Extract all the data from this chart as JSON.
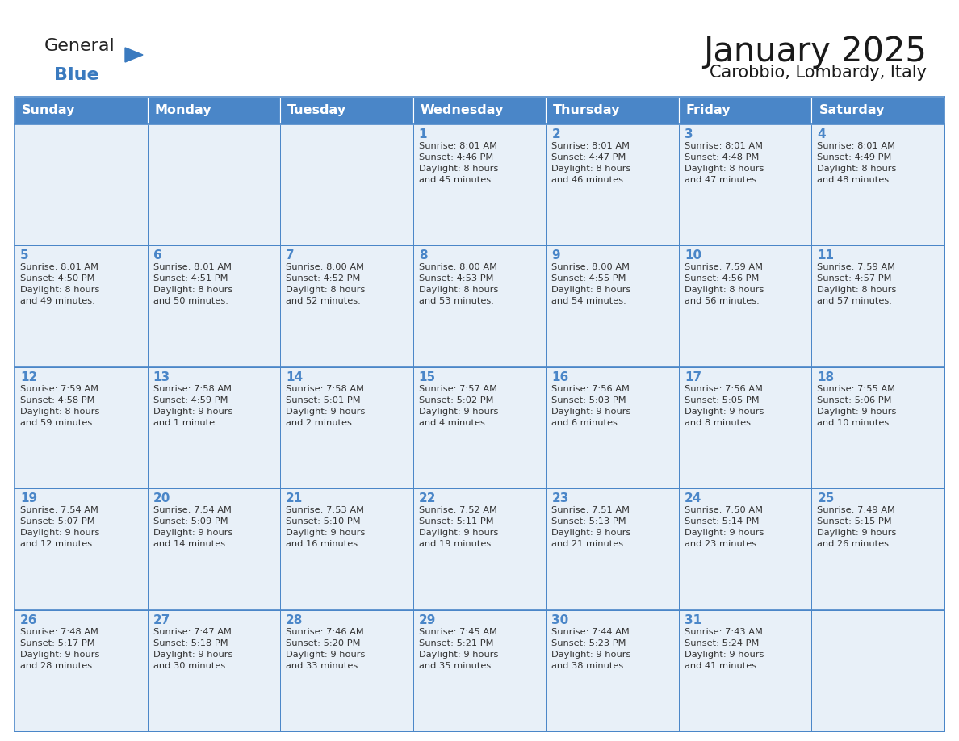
{
  "title": "January 2025",
  "subtitle": "Carobbio, Lombardy, Italy",
  "header_bg": "#4a86c8",
  "header_text_color": "#ffffff",
  "cell_bg": "#e8f0f8",
  "cell_bg_white": "#ffffff",
  "border_color": "#4a86c8",
  "border_color_light": "#a0b8d8",
  "day_names": [
    "Sunday",
    "Monday",
    "Tuesday",
    "Wednesday",
    "Thursday",
    "Friday",
    "Saturday"
  ],
  "title_color": "#1a1a1a",
  "subtitle_color": "#1a1a1a",
  "day_number_color": "#4a86c8",
  "cell_text_color": "#333333",
  "logo_general_color": "#222222",
  "logo_blue_color": "#3a7abf",
  "calendar_data": [
    [
      {
        "day": null,
        "info": ""
      },
      {
        "day": null,
        "info": ""
      },
      {
        "day": null,
        "info": ""
      },
      {
        "day": 1,
        "info": "Sunrise: 8:01 AM\nSunset: 4:46 PM\nDaylight: 8 hours\nand 45 minutes."
      },
      {
        "day": 2,
        "info": "Sunrise: 8:01 AM\nSunset: 4:47 PM\nDaylight: 8 hours\nand 46 minutes."
      },
      {
        "day": 3,
        "info": "Sunrise: 8:01 AM\nSunset: 4:48 PM\nDaylight: 8 hours\nand 47 minutes."
      },
      {
        "day": 4,
        "info": "Sunrise: 8:01 AM\nSunset: 4:49 PM\nDaylight: 8 hours\nand 48 minutes."
      }
    ],
    [
      {
        "day": 5,
        "info": "Sunrise: 8:01 AM\nSunset: 4:50 PM\nDaylight: 8 hours\nand 49 minutes."
      },
      {
        "day": 6,
        "info": "Sunrise: 8:01 AM\nSunset: 4:51 PM\nDaylight: 8 hours\nand 50 minutes."
      },
      {
        "day": 7,
        "info": "Sunrise: 8:00 AM\nSunset: 4:52 PM\nDaylight: 8 hours\nand 52 minutes."
      },
      {
        "day": 8,
        "info": "Sunrise: 8:00 AM\nSunset: 4:53 PM\nDaylight: 8 hours\nand 53 minutes."
      },
      {
        "day": 9,
        "info": "Sunrise: 8:00 AM\nSunset: 4:55 PM\nDaylight: 8 hours\nand 54 minutes."
      },
      {
        "day": 10,
        "info": "Sunrise: 7:59 AM\nSunset: 4:56 PM\nDaylight: 8 hours\nand 56 minutes."
      },
      {
        "day": 11,
        "info": "Sunrise: 7:59 AM\nSunset: 4:57 PM\nDaylight: 8 hours\nand 57 minutes."
      }
    ],
    [
      {
        "day": 12,
        "info": "Sunrise: 7:59 AM\nSunset: 4:58 PM\nDaylight: 8 hours\nand 59 minutes."
      },
      {
        "day": 13,
        "info": "Sunrise: 7:58 AM\nSunset: 4:59 PM\nDaylight: 9 hours\nand 1 minute."
      },
      {
        "day": 14,
        "info": "Sunrise: 7:58 AM\nSunset: 5:01 PM\nDaylight: 9 hours\nand 2 minutes."
      },
      {
        "day": 15,
        "info": "Sunrise: 7:57 AM\nSunset: 5:02 PM\nDaylight: 9 hours\nand 4 minutes."
      },
      {
        "day": 16,
        "info": "Sunrise: 7:56 AM\nSunset: 5:03 PM\nDaylight: 9 hours\nand 6 minutes."
      },
      {
        "day": 17,
        "info": "Sunrise: 7:56 AM\nSunset: 5:05 PM\nDaylight: 9 hours\nand 8 minutes."
      },
      {
        "day": 18,
        "info": "Sunrise: 7:55 AM\nSunset: 5:06 PM\nDaylight: 9 hours\nand 10 minutes."
      }
    ],
    [
      {
        "day": 19,
        "info": "Sunrise: 7:54 AM\nSunset: 5:07 PM\nDaylight: 9 hours\nand 12 minutes."
      },
      {
        "day": 20,
        "info": "Sunrise: 7:54 AM\nSunset: 5:09 PM\nDaylight: 9 hours\nand 14 minutes."
      },
      {
        "day": 21,
        "info": "Sunrise: 7:53 AM\nSunset: 5:10 PM\nDaylight: 9 hours\nand 16 minutes."
      },
      {
        "day": 22,
        "info": "Sunrise: 7:52 AM\nSunset: 5:11 PM\nDaylight: 9 hours\nand 19 minutes."
      },
      {
        "day": 23,
        "info": "Sunrise: 7:51 AM\nSunset: 5:13 PM\nDaylight: 9 hours\nand 21 minutes."
      },
      {
        "day": 24,
        "info": "Sunrise: 7:50 AM\nSunset: 5:14 PM\nDaylight: 9 hours\nand 23 minutes."
      },
      {
        "day": 25,
        "info": "Sunrise: 7:49 AM\nSunset: 5:15 PM\nDaylight: 9 hours\nand 26 minutes."
      }
    ],
    [
      {
        "day": 26,
        "info": "Sunrise: 7:48 AM\nSunset: 5:17 PM\nDaylight: 9 hours\nand 28 minutes."
      },
      {
        "day": 27,
        "info": "Sunrise: 7:47 AM\nSunset: 5:18 PM\nDaylight: 9 hours\nand 30 minutes."
      },
      {
        "day": 28,
        "info": "Sunrise: 7:46 AM\nSunset: 5:20 PM\nDaylight: 9 hours\nand 33 minutes."
      },
      {
        "day": 29,
        "info": "Sunrise: 7:45 AM\nSunset: 5:21 PM\nDaylight: 9 hours\nand 35 minutes."
      },
      {
        "day": 30,
        "info": "Sunrise: 7:44 AM\nSunset: 5:23 PM\nDaylight: 9 hours\nand 38 minutes."
      },
      {
        "day": 31,
        "info": "Sunrise: 7:43 AM\nSunset: 5:24 PM\nDaylight: 9 hours\nand 41 minutes."
      },
      {
        "day": null,
        "info": ""
      }
    ]
  ]
}
